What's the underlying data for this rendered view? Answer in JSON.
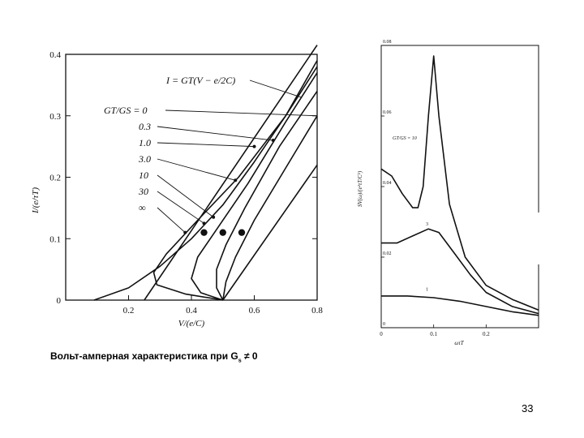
{
  "caption": {
    "text": "Вольт-амперная характеристика при G",
    "sub": "s",
    "rel": " ≠ 0"
  },
  "page_number": "33",
  "colors": {
    "ink": "#111111",
    "background": "#ffffff"
  },
  "chart_data": [
    {
      "type": "line",
      "ylabel": "I/(e/τT)",
      "xlabel": "V/(e/C)",
      "xlim": [
        0,
        0.8
      ],
      "ylim": [
        0,
        0.4
      ],
      "xticks": [
        {
          "v": 0,
          "label": ""
        },
        {
          "v": 0.2,
          "label": "0.2"
        },
        {
          "v": 0.4,
          "label": "0.4"
        },
        {
          "v": 0.6,
          "label": "0.6"
        },
        {
          "v": 0.8,
          "label": "0.8"
        }
      ],
      "yticks": [
        {
          "v": 0,
          "label": "0"
        },
        {
          "v": 0.1,
          "label": "0.1"
        },
        {
          "v": 0.2,
          "label": "0.2"
        },
        {
          "v": 0.3,
          "label": "0.3"
        },
        {
          "v": 0.4,
          "label": "0.4"
        }
      ],
      "annotation_formula": "I = GT(V − e/2C)",
      "legend_header": "GT/GS = 0",
      "legend_labels": [
        "0.3",
        "1.0",
        "3.0",
        "10",
        "30",
        "∞"
      ],
      "series": [
        {
          "id": "gs0",
          "values": [
            [
              0.25,
              0.0
            ],
            [
              0.8,
              0.415
            ]
          ]
        },
        {
          "id": "r03",
          "values": [
            [
              0.09,
              0.0
            ],
            [
              0.2,
              0.02
            ],
            [
              0.3,
              0.055
            ],
            [
              0.4,
              0.1
            ],
            [
              0.5,
              0.155
            ],
            [
              0.6,
              0.225
            ],
            [
              0.7,
              0.3
            ],
            [
              0.8,
              0.39
            ]
          ]
        },
        {
          "id": "r1",
          "values": [
            [
              0.5,
              0.0
            ],
            [
              0.38,
              0.01
            ],
            [
              0.29,
              0.025
            ],
            [
              0.28,
              0.045
            ],
            [
              0.32,
              0.075
            ],
            [
              0.42,
              0.13
            ],
            [
              0.55,
              0.2
            ],
            [
              0.7,
              0.3
            ],
            [
              0.8,
              0.38
            ]
          ]
        },
        {
          "id": "r3",
          "values": [
            [
              0.5,
              0.0
            ],
            [
              0.43,
              0.012
            ],
            [
              0.4,
              0.035
            ],
            [
              0.42,
              0.07
            ],
            [
              0.48,
              0.115
            ],
            [
              0.58,
              0.19
            ],
            [
              0.7,
              0.29
            ],
            [
              0.8,
              0.37
            ]
          ]
        },
        {
          "id": "r10",
          "values": [
            [
              0.5,
              0.0
            ],
            [
              0.48,
              0.02
            ],
            [
              0.48,
              0.05
            ],
            [
              0.51,
              0.09
            ],
            [
              0.57,
              0.15
            ],
            [
              0.68,
              0.25
            ],
            [
              0.8,
              0.34
            ]
          ]
        },
        {
          "id": "r30",
          "values": [
            [
              0.5,
              0.0
            ],
            [
              0.51,
              0.03
            ],
            [
              0.54,
              0.07
            ],
            [
              0.6,
              0.13
            ],
            [
              0.7,
              0.215
            ],
            [
              0.8,
              0.3
            ]
          ]
        },
        {
          "id": "rinf",
          "values": [
            [
              0.5,
              0.0
            ],
            [
              0.8,
              0.22
            ]
          ]
        }
      ],
      "markers": [
        [
          0.44,
          0.11
        ],
        [
          0.5,
          0.11
        ],
        [
          0.56,
          0.11
        ]
      ]
    },
    {
      "type": "line",
      "ylabel": "SV(ω)/(e²τT/C²)",
      "xlabel": "ωτT",
      "xlim": [
        0,
        0.3
      ],
      "ylim": [
        0,
        0.08
      ],
      "xticks": [
        {
          "v": 0,
          "label": "0"
        },
        {
          "v": 0.1,
          "label": "0.1"
        },
        {
          "v": 0.2,
          "label": "0.2"
        }
      ],
      "yticks": [
        {
          "v": 0,
          "label": "0"
        },
        {
          "v": 0.02,
          "label": "0.02"
        },
        {
          "v": 0.04,
          "label": "0.04"
        },
        {
          "v": 0.06,
          "label": "0.06"
        },
        {
          "v": 0.08,
          "label": "0.08"
        }
      ],
      "annotation_ratio": "GT/GS = 10",
      "series": [
        {
          "name": "10",
          "values": [
            [
              0,
              0.045
            ],
            [
              0.02,
              0.043
            ],
            [
              0.04,
              0.038
            ],
            [
              0.06,
              0.034
            ],
            [
              0.07,
              0.034
            ],
            [
              0.08,
              0.04
            ],
            [
              0.09,
              0.06
            ],
            [
              0.1,
              0.077
            ],
            [
              0.11,
              0.06
            ],
            [
              0.13,
              0.035
            ],
            [
              0.16,
              0.02
            ],
            [
              0.2,
              0.012
            ],
            [
              0.25,
              0.008
            ],
            [
              0.3,
              0.005
            ]
          ]
        },
        {
          "name": "3",
          "values": [
            [
              0,
              0.024
            ],
            [
              0.03,
              0.024
            ],
            [
              0.06,
              0.026
            ],
            [
              0.09,
              0.028
            ],
            [
              0.11,
              0.027
            ],
            [
              0.14,
              0.021
            ],
            [
              0.17,
              0.015
            ],
            [
              0.2,
              0.01
            ],
            [
              0.25,
              0.006
            ],
            [
              0.3,
              0.004
            ]
          ]
        },
        {
          "name": "1",
          "values": [
            [
              0,
              0.009
            ],
            [
              0.05,
              0.009
            ],
            [
              0.1,
              0.0085
            ],
            [
              0.15,
              0.0075
            ],
            [
              0.2,
              0.006
            ],
            [
              0.25,
              0.0045
            ],
            [
              0.3,
              0.0035
            ]
          ]
        }
      ]
    }
  ]
}
